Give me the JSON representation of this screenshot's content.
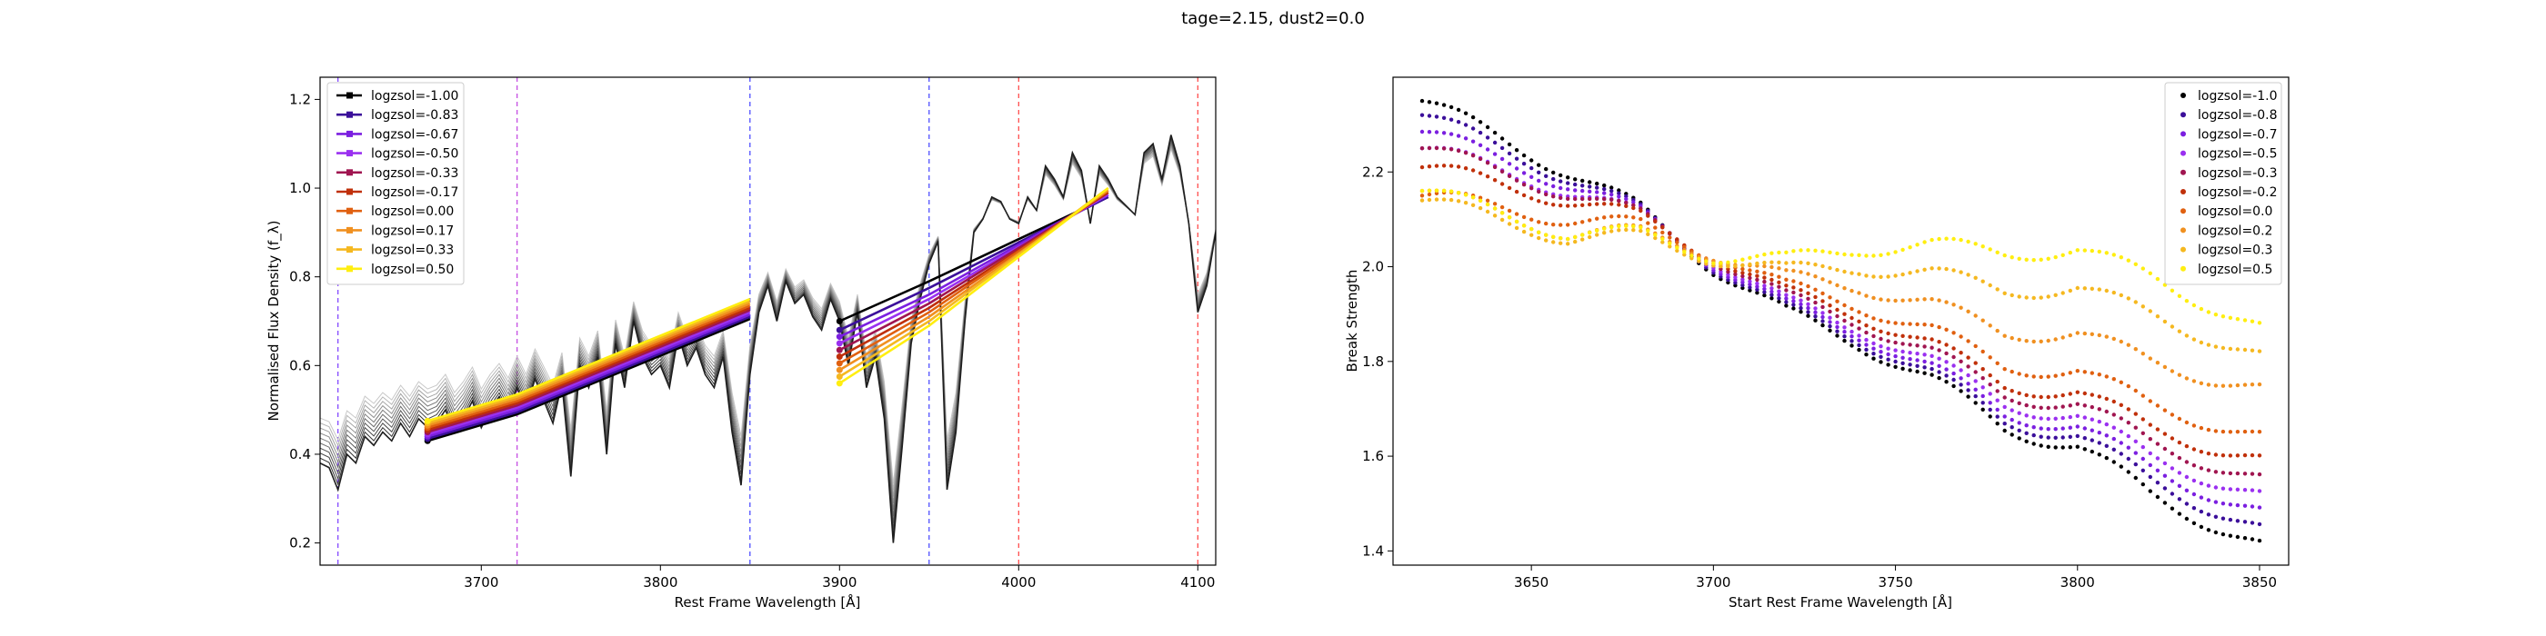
{
  "figure": {
    "suptitle": "tage=2.15, dust2=0.0"
  },
  "chart_data": [
    {
      "type": "line",
      "xlabel": "Rest Frame Wavelength [Å]",
      "ylabel": "Normalised Flux Density (f_λ)",
      "xlim": [
        3610,
        4110
      ],
      "ylim": [
        0.15,
        1.25
      ],
      "xticks": [
        3700,
        3800,
        3900,
        4000,
        4100
      ],
      "yticks": [
        0.2,
        0.4,
        0.6,
        0.8,
        1.0,
        1.2
      ],
      "grid": false,
      "legend": "upper-left",
      "vlines": [
        {
          "x": 3620,
          "color": "#7a3aff"
        },
        {
          "x": 3720,
          "color": "#c040e0"
        },
        {
          "x": 3850,
          "color": "#4040ff"
        },
        {
          "x": 3950,
          "color": "#4040ff"
        },
        {
          "x": 4000,
          "color": "#ff4040"
        },
        {
          "x": 4100,
          "color": "#ff4040"
        }
      ],
      "spectrum_x": [
        3610,
        3615,
        3620,
        3625,
        3630,
        3635,
        3640,
        3645,
        3650,
        3655,
        3660,
        3665,
        3670,
        3675,
        3680,
        3685,
        3690,
        3695,
        3700,
        3705,
        3710,
        3715,
        3720,
        3725,
        3730,
        3735,
        3740,
        3745,
        3750,
        3755,
        3760,
        3765,
        3770,
        3775,
        3780,
        3785,
        3790,
        3795,
        3800,
        3805,
        3810,
        3815,
        3820,
        3825,
        3830,
        3835,
        3840,
        3845,
        3850,
        3855,
        3860,
        3865,
        3870,
        3875,
        3880,
        3885,
        3890,
        3895,
        3900,
        3905,
        3910,
        3915,
        3920,
        3925,
        3930,
        3935,
        3940,
        3945,
        3950,
        3955,
        3960,
        3965,
        3970,
        3975,
        3980,
        3985,
        3990,
        3995,
        4000,
        4005,
        4010,
        4015,
        4020,
        4025,
        4030,
        4035,
        4040,
        4045,
        4050,
        4055,
        4060,
        4065,
        4070,
        4075,
        4080,
        4085,
        4090,
        4095,
        4100,
        4105,
        4110
      ],
      "spectrum_y": [
        0.38,
        0.37,
        0.32,
        0.4,
        0.38,
        0.44,
        0.42,
        0.45,
        0.43,
        0.47,
        0.44,
        0.48,
        0.46,
        0.47,
        0.5,
        0.45,
        0.48,
        0.52,
        0.46,
        0.5,
        0.53,
        0.49,
        0.55,
        0.5,
        0.57,
        0.52,
        0.47,
        0.56,
        0.35,
        0.6,
        0.55,
        0.62,
        0.4,
        0.65,
        0.55,
        0.7,
        0.62,
        0.58,
        0.6,
        0.55,
        0.67,
        0.6,
        0.64,
        0.58,
        0.55,
        0.62,
        0.45,
        0.33,
        0.58,
        0.72,
        0.78,
        0.7,
        0.79,
        0.74,
        0.76,
        0.71,
        0.68,
        0.75,
        0.7,
        0.6,
        0.72,
        0.55,
        0.62,
        0.48,
        0.2,
        0.42,
        0.65,
        0.75,
        0.83,
        0.88,
        0.32,
        0.45,
        0.7,
        0.9,
        0.93,
        0.98,
        0.97,
        0.93,
        0.92,
        0.98,
        0.95,
        1.05,
        1.02,
        0.98,
        1.08,
        1.04,
        0.92,
        1.05,
        1.02,
        0.98,
        0.96,
        0.94,
        1.08,
        1.1,
        1.02,
        1.12,
        1.05,
        0.92,
        0.72,
        0.78,
        0.9
      ],
      "fit_left_x": [
        3670,
        3720,
        3850
      ],
      "fit_right_x": [
        3900,
        3950,
        4050
      ],
      "series": [
        {
          "name": "logzsol=-1.00",
          "color": "#000000",
          "left_y": [
            0.43,
            0.49,
            0.705
          ],
          "right_y": [
            0.7,
            0.79,
            0.98
          ]
        },
        {
          "name": "logzsol=-0.83",
          "color": "#3b0f9a",
          "left_y": [
            0.435,
            0.495,
            0.71
          ],
          "right_y": [
            0.68,
            0.775,
            0.98
          ]
        },
        {
          "name": "logzsol=-0.67",
          "color": "#7b1fe0",
          "left_y": [
            0.44,
            0.5,
            0.715
          ],
          "right_y": [
            0.665,
            0.76,
            0.985
          ]
        },
        {
          "name": "logzsol=-0.50",
          "color": "#9a30f0",
          "left_y": [
            0.445,
            0.505,
            0.72
          ],
          "right_y": [
            0.65,
            0.75,
            0.985
          ]
        },
        {
          "name": "logzsol=-0.33",
          "color": "#a01550",
          "left_y": [
            0.45,
            0.51,
            0.725
          ],
          "right_y": [
            0.635,
            0.74,
            0.99
          ]
        },
        {
          "name": "logzsol=-0.17",
          "color": "#c0300a",
          "left_y": [
            0.455,
            0.515,
            0.73
          ],
          "right_y": [
            0.62,
            0.73,
            0.99
          ]
        },
        {
          "name": "logzsol=0.00",
          "color": "#e06010",
          "left_y": [
            0.46,
            0.52,
            0.735
          ],
          "right_y": [
            0.605,
            0.72,
            0.995
          ]
        },
        {
          "name": "logzsol=0.17",
          "color": "#f09020",
          "left_y": [
            0.465,
            0.525,
            0.74
          ],
          "right_y": [
            0.59,
            0.71,
            0.995
          ]
        },
        {
          "name": "logzsol=0.33",
          "color": "#f5b820",
          "left_y": [
            0.47,
            0.53,
            0.745
          ],
          "right_y": [
            0.575,
            0.7,
            1.0
          ]
        },
        {
          "name": "logzsol=0.50",
          "color": "#ffee10",
          "left_y": [
            0.475,
            0.535,
            0.75
          ],
          "right_y": [
            0.56,
            0.69,
            1.0
          ]
        }
      ]
    },
    {
      "type": "scatter",
      "xlabel": "Start Rest Frame Wavelength [Å]",
      "ylabel": "Break Strength",
      "xlim": [
        3612,
        3858
      ],
      "ylim": [
        1.37,
        2.4
      ],
      "xticks": [
        3650,
        3700,
        3750,
        3800,
        3850
      ],
      "yticks": [
        1.4,
        1.6,
        1.8,
        2.0,
        2.2
      ],
      "grid": false,
      "legend": "upper-right",
      "series": [
        {
          "name": "logzsol=-1.0",
          "color": "#000000",
          "offsets": [
            0,
            0,
            0,
            0,
            0,
            0,
            0
          ]
        },
        {
          "name": "logzsol=-0.8",
          "color": "#3b0f9a",
          "offsets": [
            -0.03,
            -0.012,
            0.005,
            0.01,
            0.015,
            0.03,
            0.035
          ]
        },
        {
          "name": "logzsol=-0.7",
          "color": "#7b1fe0",
          "offsets": [
            -0.065,
            -0.025,
            0.01,
            0.02,
            0.03,
            0.055,
            0.07
          ]
        },
        {
          "name": "logzsol=-0.5",
          "color": "#9a30f0",
          "offsets": [
            -0.1,
            -0.04,
            0.015,
            0.03,
            0.05,
            0.08,
            0.105
          ]
        },
        {
          "name": "logzsol=-0.3",
          "color": "#a01550",
          "offsets": [
            -0.1,
            -0.045,
            0.02,
            0.045,
            0.07,
            0.11,
            0.14
          ]
        },
        {
          "name": "logzsol=-0.2",
          "color": "#c0300a",
          "offsets": [
            -0.14,
            -0.06,
            0.025,
            0.06,
            0.09,
            0.14,
            0.18
          ]
        },
        {
          "name": "logzsol=0.0",
          "color": "#e06010",
          "offsets": [
            -0.2,
            -0.1,
            0.03,
            0.08,
            0.13,
            0.19,
            0.23
          ]
        },
        {
          "name": "logzsol=0.2",
          "color": "#f09020",
          "offsets": [
            -0.19,
            -0.13,
            0.03,
            0.12,
            0.2,
            0.28,
            0.33
          ]
        },
        {
          "name": "logzsol=0.3",
          "color": "#f5b820",
          "offsets": [
            -0.21,
            -0.14,
            0.02,
            0.16,
            0.29,
            0.38,
            0.4
          ]
        },
        {
          "name": "logzsol=0.5",
          "color": "#ffee10",
          "offsets": [
            -0.19,
            -0.13,
            0.025,
            0.2,
            0.37,
            0.46,
            0.46
          ]
        }
      ],
      "base_knots_x": [
        3620,
        3650,
        3680,
        3700,
        3720,
        3740,
        3760,
        3780,
        3800,
        3820,
        3850
      ],
      "base_knots_y": [
        2.35,
        2.24,
        2.12,
        2.0,
        1.9,
        1.84,
        1.76,
        1.66,
        1.62,
        1.52,
        1.41
      ],
      "offset_knots_x": [
        3620,
        3660,
        3700,
        3740,
        3780,
        3820,
        3850
      ],
      "x_step": 2
    }
  ]
}
